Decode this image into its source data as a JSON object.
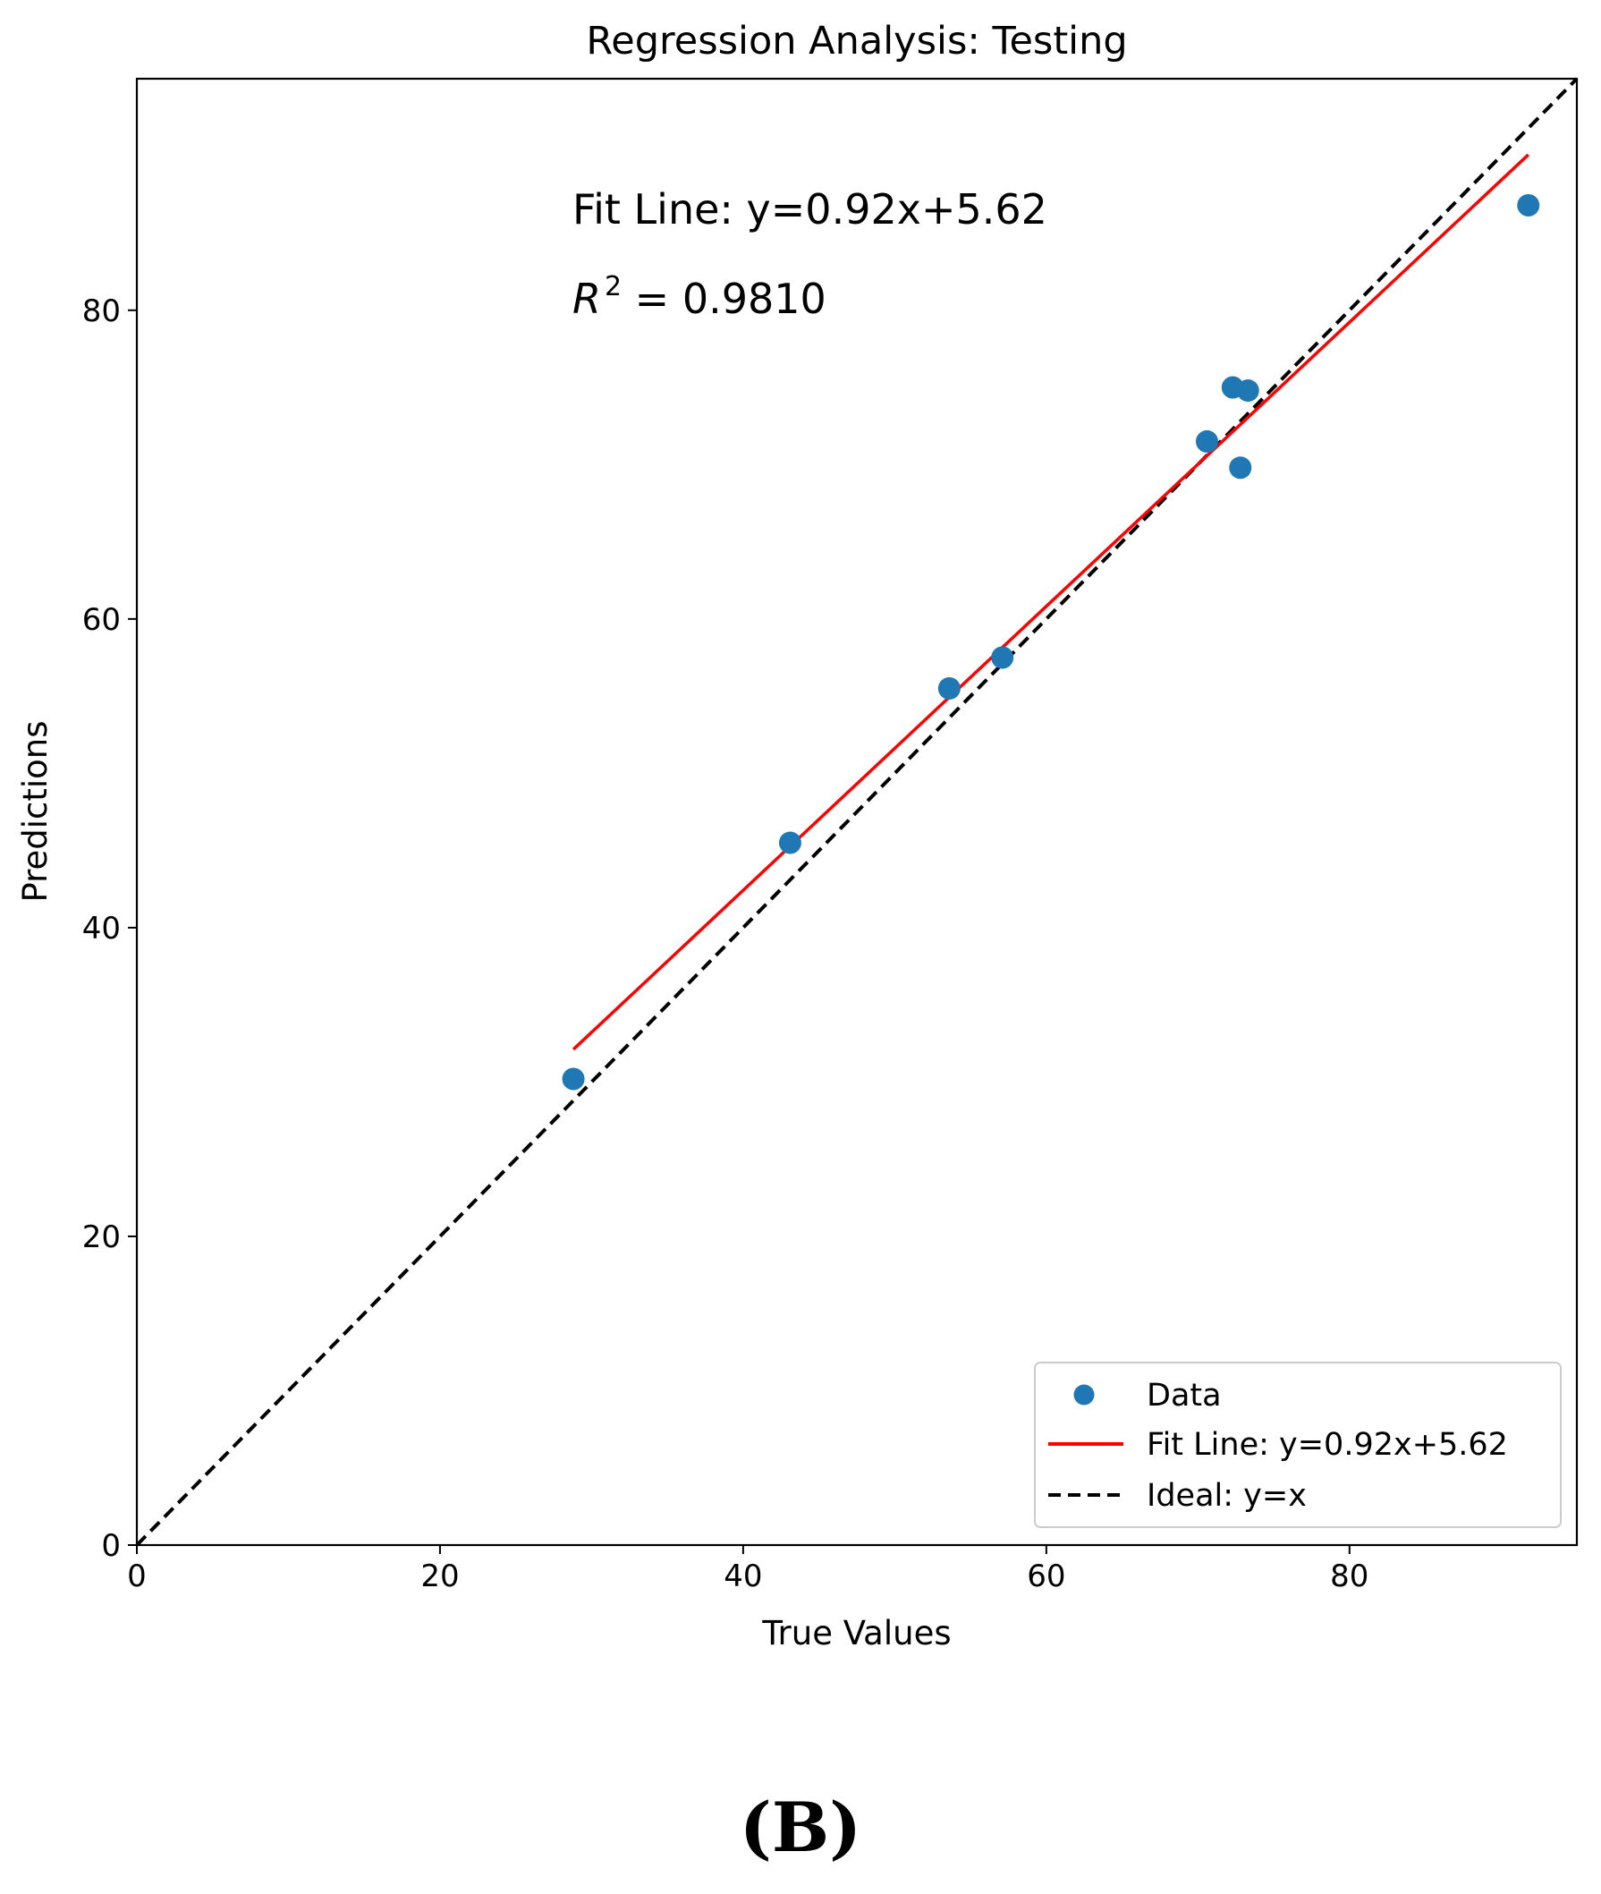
{
  "chart_data": {
    "type": "scatter",
    "title": "Regression Analysis: Testing",
    "xlabel": "True Values",
    "ylabel": "Predictions",
    "xlim": [
      0,
      95
    ],
    "ylim": [
      0,
      95
    ],
    "xticks": [
      0,
      20,
      40,
      60,
      80
    ],
    "yticks": [
      0,
      20,
      40,
      60,
      80
    ],
    "tick_labels_x": [
      "0",
      "20",
      "40",
      "60",
      "80"
    ],
    "tick_labels_y": [
      "0",
      "20",
      "40",
      "60",
      "80"
    ],
    "grid": false,
    "series": [
      {
        "name": "Data",
        "kind": "scatter",
        "color": "#1f77b4",
        "points": [
          {
            "x": 28.8,
            "y": 30.2
          },
          {
            "x": 43.1,
            "y": 45.5
          },
          {
            "x": 53.6,
            "y": 55.5
          },
          {
            "x": 57.1,
            "y": 57.5
          },
          {
            "x": 70.6,
            "y": 71.5
          },
          {
            "x": 72.3,
            "y": 75.0
          },
          {
            "x": 73.3,
            "y": 74.8
          },
          {
            "x": 72.8,
            "y": 69.8
          },
          {
            "x": 91.8,
            "y": 86.8
          }
        ]
      },
      {
        "name": "Fit Line: y=0.92x+5.62",
        "kind": "line",
        "color": "#ff0000",
        "slope": 0.92,
        "intercept": 5.62,
        "x_range": [
          28.8,
          91.8
        ]
      },
      {
        "name": "Ideal: y=x",
        "kind": "dashed-line",
        "color": "#000000",
        "slope": 1,
        "intercept": 0,
        "x_range": [
          0,
          95
        ]
      }
    ],
    "annotations": {
      "fit_text": "Fit Line: y=0.92x+5.62",
      "r2_symbol": "R",
      "r2_exponent": "2",
      "r2_value": " = 0.9810"
    },
    "legend": {
      "position": "lower-right",
      "entries": [
        "Data",
        "Fit Line: y=0.92x+5.62",
        "Ideal: y=x"
      ]
    }
  },
  "panel_label": "(B)"
}
